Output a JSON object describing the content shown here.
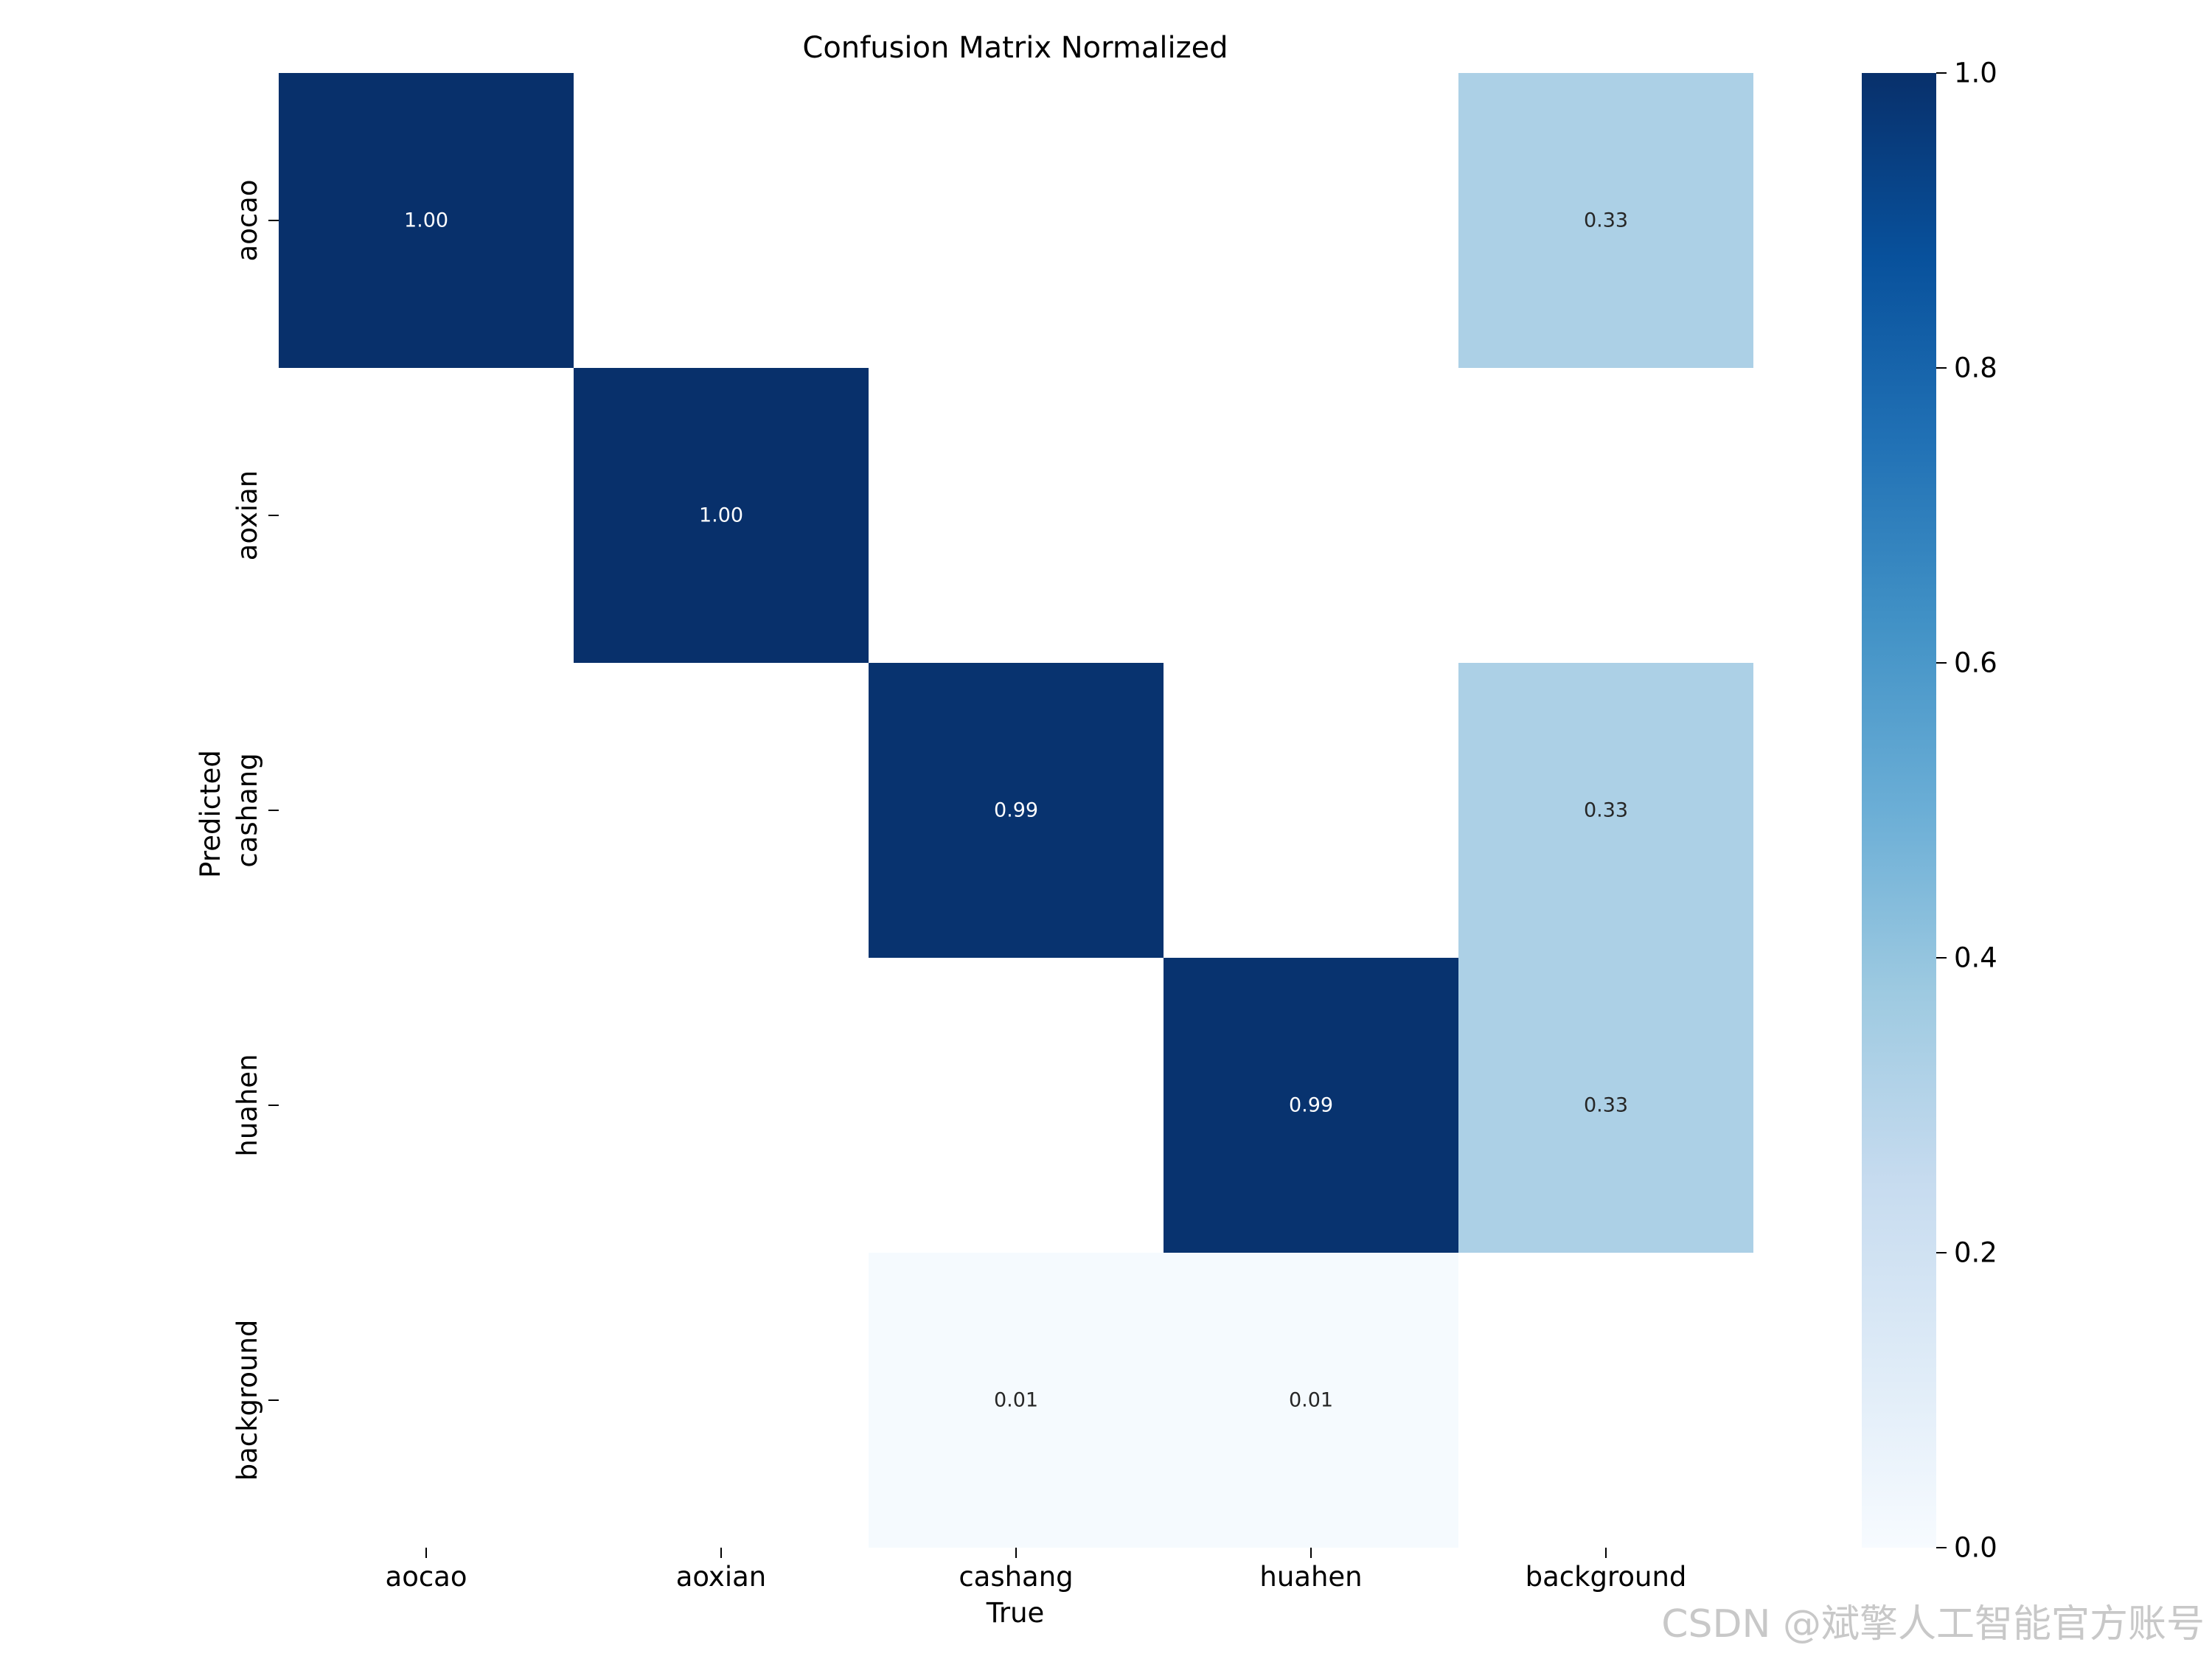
{
  "chart_data": {
    "type": "heatmap",
    "title": "Confusion Matrix Normalized",
    "xlabel": "True",
    "ylabel": "Predicted",
    "x_categories": [
      "aocao",
      "aoxian",
      "cashang",
      "huahen",
      "background"
    ],
    "y_categories": [
      "aocao",
      "aoxian",
      "cashang",
      "huahen",
      "background"
    ],
    "values": [
      [
        1.0,
        null,
        null,
        null,
        0.33
      ],
      [
        null,
        1.0,
        null,
        null,
        null
      ],
      [
        null,
        null,
        0.99,
        null,
        0.33
      ],
      [
        null,
        null,
        null,
        0.99,
        0.33
      ],
      [
        null,
        null,
        0.01,
        0.01,
        null
      ]
    ],
    "cell_labels": [
      [
        "1.00",
        "",
        "",
        "",
        "0.33"
      ],
      [
        "",
        "1.00",
        "",
        "",
        ""
      ],
      [
        "",
        "",
        "0.99",
        "",
        "0.33"
      ],
      [
        "",
        "",
        "",
        "0.99",
        "0.33"
      ],
      [
        "",
        "",
        "0.01",
        "0.01",
        ""
      ]
    ],
    "colormap": "Blues",
    "colorbar": {
      "range": [
        0.0,
        1.0
      ],
      "ticks": [
        0.0,
        0.2,
        0.4,
        0.6,
        0.8,
        1.0
      ],
      "tick_labels": [
        "0.0",
        "0.2",
        "0.4",
        "0.6",
        "0.8",
        "1.0"
      ]
    },
    "grid": false
  },
  "watermark": "CSDN @斌擎人工智能官方账号"
}
